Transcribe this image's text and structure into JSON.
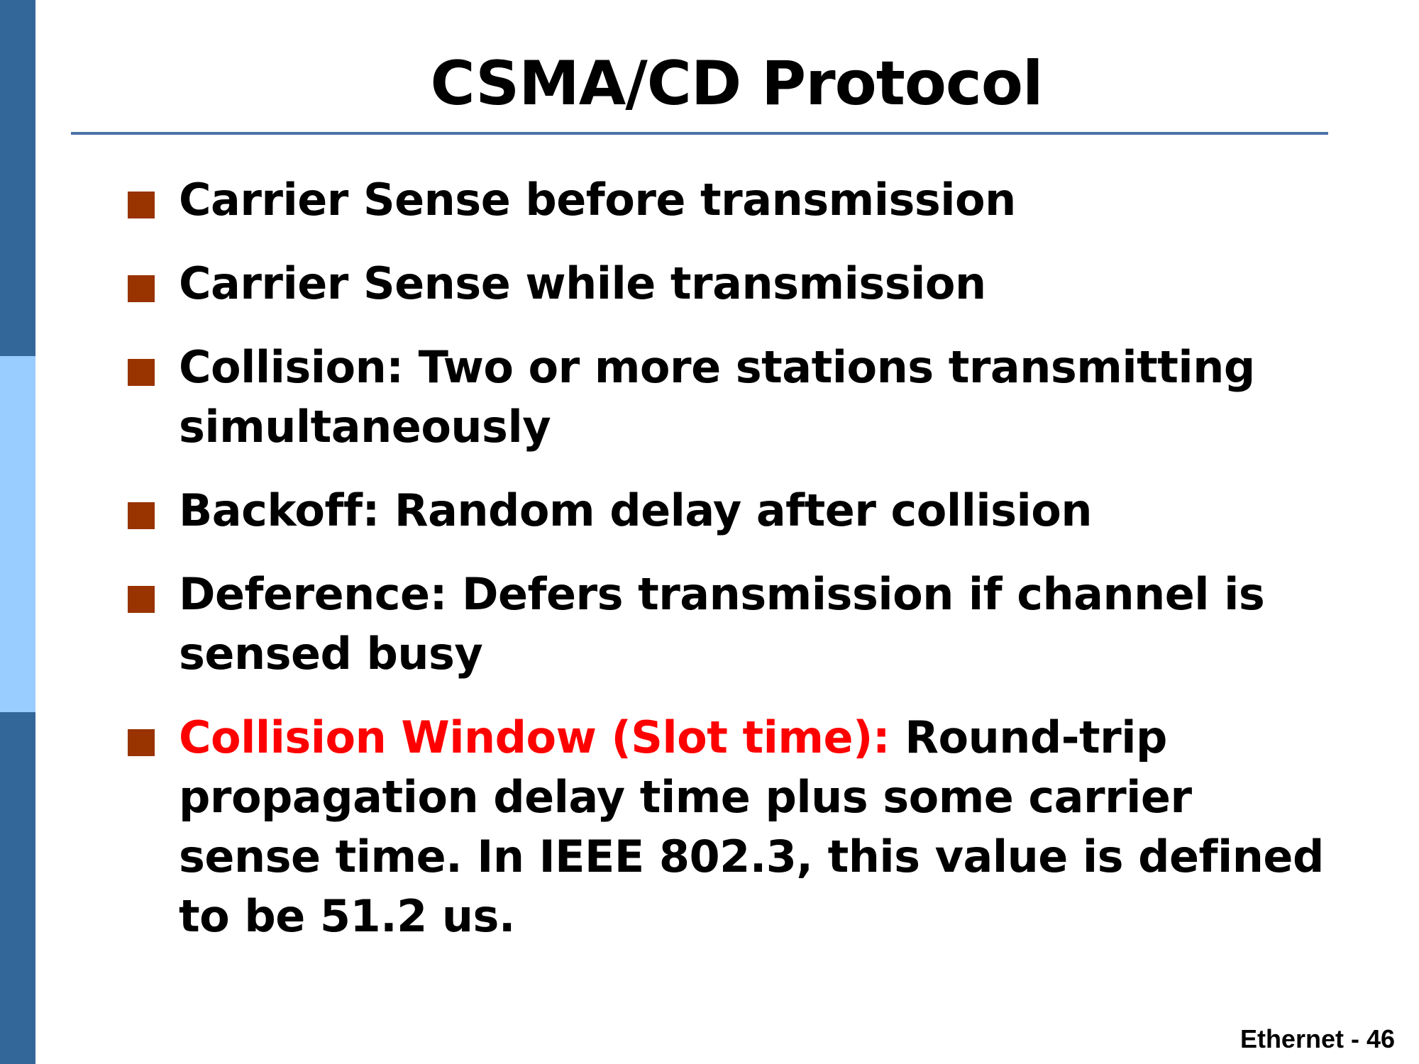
{
  "slide": {
    "title": "CSMA/CD Protocol",
    "bullets": [
      {
        "text": "Carrier Sense before transmission"
      },
      {
        "text": "Carrier Sense while transmission"
      },
      {
        "text": "Collision: Two or more stations transmitting simultaneously"
      },
      {
        "text": "Backoff: Random delay after collision"
      },
      {
        "text": "Deference: Defers transmission if channel is sensed busy"
      },
      {
        "highlight": "Collision Window (Slot time):",
        "text": "Round-trip propagation delay time plus some carrier sense time. In IEEE 802.3, this value is defined to be 51.2 us."
      }
    ],
    "footer": "Ethernet - 46"
  },
  "colors": {
    "sidebar_dark": "#336699",
    "sidebar_light": "#99ccff",
    "title_rule": "#4a73a8",
    "bullet_marker": "#993300",
    "highlight_text": "#ff0000"
  },
  "icons": {
    "bullet": "square-bullet-icon"
  }
}
